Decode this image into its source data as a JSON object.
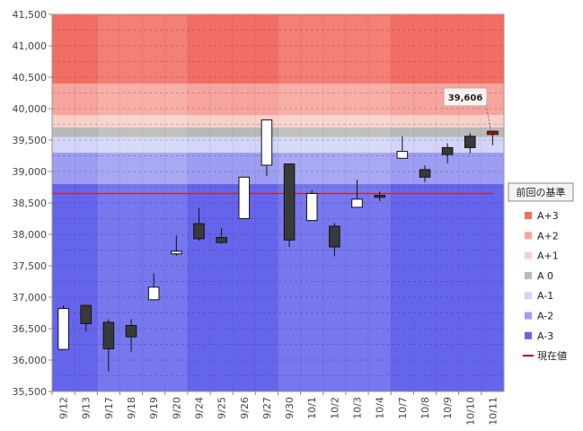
{
  "chart_data": {
    "type": "candlestick",
    "y_range": [
      35500,
      41500
    ],
    "y_ticks": [
      "35,500",
      "36,000",
      "36,500",
      "37,000",
      "37,500",
      "38,000",
      "38,500",
      "39,000",
      "39,500",
      "40,000",
      "40,500",
      "41,000",
      "41,500"
    ],
    "categories": [
      "9/12",
      "9/13",
      "9/17",
      "9/18",
      "9/19",
      "9/20",
      "9/24",
      "9/25",
      "9/26",
      "9/27",
      "9/30",
      "10/1",
      "10/2",
      "10/3",
      "10/4",
      "10/7",
      "10/8",
      "10/9",
      "10/10",
      "10/11"
    ],
    "candles": [
      {
        "open": 36170,
        "high": 36870,
        "low": 36170,
        "close": 36820
      },
      {
        "open": 36870,
        "high": 36870,
        "low": 36450,
        "close": 36580
      },
      {
        "open": 36600,
        "high": 36650,
        "low": 35820,
        "close": 36180
      },
      {
        "open": 36550,
        "high": 36650,
        "low": 36130,
        "close": 36370
      },
      {
        "open": 36960,
        "high": 37380,
        "low": 36960,
        "close": 37160
      },
      {
        "open": 37690,
        "high": 37980,
        "low": 37660,
        "close": 37730
      },
      {
        "open": 38170,
        "high": 38420,
        "low": 37900,
        "close": 37930
      },
      {
        "open": 37950,
        "high": 38100,
        "low": 37850,
        "close": 37870
      },
      {
        "open": 38250,
        "high": 38910,
        "low": 38250,
        "close": 38910
      },
      {
        "open": 39100,
        "high": 39820,
        "low": 38930,
        "close": 39820
      },
      {
        "open": 39120,
        "high": 39120,
        "low": 37800,
        "close": 37910
      },
      {
        "open": 38220,
        "high": 38700,
        "low": 38220,
        "close": 38650
      },
      {
        "open": 38130,
        "high": 38180,
        "low": 37650,
        "close": 37800
      },
      {
        "open": 38430,
        "high": 38870,
        "low": 38430,
        "close": 38560
      },
      {
        "open": 38620,
        "high": 38680,
        "low": 38530,
        "close": 38590
      },
      {
        "open": 39210,
        "high": 39560,
        "low": 39210,
        "close": 39320
      },
      {
        "open": 39030,
        "high": 39100,
        "low": 38830,
        "close": 38910
      },
      {
        "open": 39380,
        "high": 39450,
        "low": 39130,
        "close": 39270
      },
      {
        "open": 39560,
        "high": 39610,
        "low": 39290,
        "close": 39380
      },
      {
        "open": 39640,
        "high": 39650,
        "low": 39420,
        "close": 39590
      }
    ],
    "zones": [
      {
        "name": "A+3",
        "from": 40400,
        "to": 41500,
        "color": "#f26e65"
      },
      {
        "name": "A+2",
        "from": 39900,
        "to": 40400,
        "color": "#f6a49d"
      },
      {
        "name": "A+1",
        "from": 39700,
        "to": 39900,
        "color": "#f9cfca"
      },
      {
        "name": "A 0",
        "from": 39550,
        "to": 39700,
        "color": "#b9b9b9"
      },
      {
        "name": "A-1",
        "from": 39300,
        "to": 39550,
        "color": "#d4d4f8"
      },
      {
        "name": "A-2",
        "from": 38800,
        "to": 39300,
        "color": "#9d9df2"
      },
      {
        "name": "A-3",
        "from": 35500,
        "to": 38800,
        "color": "#6565ec"
      }
    ],
    "reference_line": {
      "value": 38650,
      "color": "#cc2222"
    },
    "current_value": 39606,
    "current_value_label": "39,606",
    "legend": {
      "title": "前回の基準",
      "items": [
        {
          "label": "A+3",
          "color": "#f26e65",
          "kind": "box"
        },
        {
          "label": "A+2",
          "color": "#f6a49d",
          "kind": "box"
        },
        {
          "label": "A+1",
          "color": "#f9cfca",
          "kind": "box"
        },
        {
          "label": "A 0",
          "color": "#b9b9b9",
          "kind": "box"
        },
        {
          "label": "A-1",
          "color": "#d4d4f8",
          "kind": "box"
        },
        {
          "label": "A-2",
          "color": "#9d9df2",
          "kind": "box"
        },
        {
          "label": "A-3",
          "color": "#6565ec",
          "kind": "box"
        },
        {
          "label": "現在値",
          "color": "#aa1111",
          "kind": "line"
        }
      ]
    },
    "colors": {
      "up": "#ffffff",
      "down": "#3a3a3a",
      "outline": "#111111"
    }
  }
}
